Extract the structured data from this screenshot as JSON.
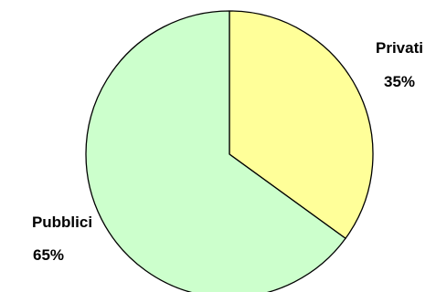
{
  "chart_data": {
    "type": "pie",
    "categories": [
      "Privati",
      "Pubblici"
    ],
    "values": [
      35,
      65
    ],
    "value_labels": [
      "35%",
      "65%"
    ],
    "colors": [
      "#ffff99",
      "#ccffcc"
    ],
    "start": "12 o'clock",
    "direction": "clockwise",
    "legend": "none"
  }
}
